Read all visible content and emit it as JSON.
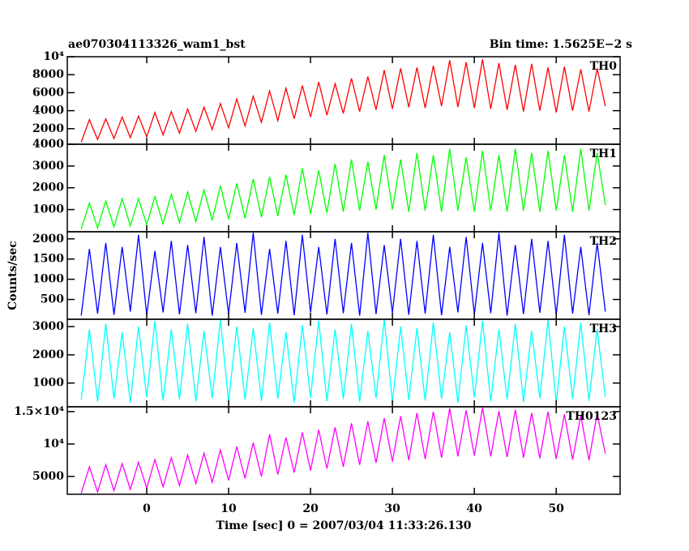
{
  "title": "ae070304113326_wam1_bst",
  "subtitle": "Bin time: 1.5625E−2 s",
  "y_label": "Counts/sec",
  "x_label": "Time [sec] 0 = 2007/03/04 11:33:26.130",
  "chart_data": [
    {
      "type": "line",
      "xlim": [
        -9.7,
        57.8
      ],
      "xticks": [
        0,
        10,
        20,
        30,
        40,
        50
      ],
      "ylim": [
        270,
        10000
      ],
      "yticks": [
        2000,
        4000,
        6000,
        8000,
        {
          "value": 10000,
          "label": "10⁴"
        }
      ],
      "x": [
        -8,
        -7,
        -6,
        -5,
        -4,
        -3,
        -2,
        -1,
        0,
        1,
        2,
        3,
        4,
        5,
        6,
        7,
        8,
        9,
        10,
        11,
        12,
        13,
        14,
        15,
        16,
        17,
        18,
        19,
        20,
        21,
        22,
        23,
        24,
        25,
        26,
        27,
        28,
        29,
        30,
        31,
        32,
        33,
        34,
        35,
        36,
        37,
        38,
        39,
        40,
        41,
        42,
        43,
        44,
        45,
        46,
        47,
        48,
        49,
        50,
        51,
        52,
        53,
        54,
        55,
        56
      ],
      "series": [
        {
          "name": "TH0",
          "color": "#ff0000",
          "values": [
            500,
            3000,
            800,
            3100,
            900,
            3300,
            1000,
            3400,
            1100,
            3800,
            1300,
            3900,
            1500,
            4200,
            1700,
            4400,
            1900,
            4800,
            2100,
            5300,
            2300,
            5600,
            2700,
            6200,
            2900,
            6500,
            3100,
            6800,
            3300,
            7200,
            3500,
            7000,
            3700,
            7600,
            3900,
            7800,
            4100,
            8500,
            4200,
            8700,
            4400,
            8800,
            4300,
            9000,
            4500,
            9600,
            4400,
            9400,
            4300,
            9700,
            4200,
            9300,
            4100,
            9100,
            3900,
            9200,
            4000,
            8800,
            3800,
            8900,
            4000,
            8600,
            3900,
            8700,
            4500
          ]
        }
      ]
    },
    {
      "type": "line",
      "xlim": [
        -9.7,
        57.8
      ],
      "xticks": [
        0,
        10,
        20,
        30,
        40,
        50
      ],
      "ylim": [
        -20,
        4000
      ],
      "yticks": [
        1000,
        2000,
        3000,
        4000
      ],
      "x": [
        -8,
        -7,
        -6,
        -5,
        -4,
        -3,
        -2,
        -1,
        0,
        1,
        2,
        3,
        4,
        5,
        6,
        7,
        8,
        9,
        10,
        11,
        12,
        13,
        14,
        15,
        16,
        17,
        18,
        19,
        20,
        21,
        22,
        23,
        24,
        25,
        26,
        27,
        28,
        29,
        30,
        31,
        32,
        33,
        34,
        35,
        36,
        37,
        38,
        39,
        40,
        41,
        42,
        43,
        44,
        45,
        46,
        47,
        48,
        49,
        50,
        51,
        52,
        53,
        54,
        55,
        56
      ],
      "series": [
        {
          "name": "TH1",
          "color": "#00ff00",
          "values": [
            100,
            1300,
            150,
            1400,
            200,
            1500,
            250,
            1500,
            300,
            1600,
            350,
            1700,
            400,
            1800,
            450,
            1900,
            500,
            2100,
            550,
            2200,
            600,
            2400,
            650,
            2500,
            700,
            2600,
            750,
            2900,
            800,
            2800,
            850,
            3100,
            900,
            3300,
            950,
            3200,
            1000,
            3500,
            1000,
            3300,
            900,
            3600,
            950,
            3500,
            900,
            3800,
            950,
            3400,
            900,
            3700,
            950,
            3500,
            900,
            3800,
            950,
            3600,
            900,
            3700,
            950,
            3500,
            900,
            3800,
            950,
            3600,
            1200
          ]
        }
      ]
    },
    {
      "type": "line",
      "xlim": [
        -9.7,
        57.8
      ],
      "xticks": [
        0,
        10,
        20,
        30,
        40,
        50
      ],
      "ylim": [
        10,
        2176
      ],
      "yticks": [
        500,
        1000,
        1500,
        2000
      ],
      "x": [
        -8,
        -7,
        -6,
        -5,
        -4,
        -3,
        -2,
        -1,
        0,
        1,
        2,
        3,
        4,
        5,
        6,
        7,
        8,
        9,
        10,
        11,
        12,
        13,
        14,
        15,
        16,
        17,
        18,
        19,
        20,
        21,
        22,
        23,
        24,
        25,
        26,
        27,
        28,
        29,
        30,
        31,
        32,
        33,
        34,
        35,
        36,
        37,
        38,
        39,
        40,
        41,
        42,
        43,
        44,
        45,
        46,
        47,
        48,
        49,
        50,
        51,
        52,
        53,
        54,
        55,
        56
      ],
      "series": [
        {
          "name": "TH2",
          "color": "#0000ff",
          "values": [
            100,
            1750,
            150,
            1900,
            120,
            1800,
            200,
            2100,
            110,
            1700,
            180,
            1950,
            130,
            1850,
            160,
            2050,
            100,
            1800,
            140,
            1900,
            170,
            2150,
            120,
            1750,
            150,
            1950,
            110,
            2100,
            180,
            1800,
            130,
            2000,
            160,
            1900,
            100,
            2150,
            140,
            1850,
            170,
            2000,
            120,
            1950,
            150,
            2100,
            110,
            1800,
            180,
            2050,
            130,
            1900,
            160,
            2150,
            100,
            1850,
            140,
            2000,
            170,
            1950,
            120,
            2100,
            150,
            1800,
            110,
            1900,
            200
          ]
        }
      ]
    },
    {
      "type": "line",
      "xlim": [
        -9.7,
        57.8
      ],
      "xticks": [
        0,
        10,
        20,
        30,
        40,
        50
      ],
      "ylim": [
        160,
        3260
      ],
      "yticks": [
        1000,
        2000,
        3000
      ],
      "x": [
        -8,
        -7,
        -6,
        -5,
        -4,
        -3,
        -2,
        -1,
        0,
        1,
        2,
        3,
        4,
        5,
        6,
        7,
        8,
        9,
        10,
        11,
        12,
        13,
        14,
        15,
        16,
        17,
        18,
        19,
        20,
        21,
        22,
        23,
        24,
        25,
        26,
        27,
        28,
        29,
        30,
        31,
        32,
        33,
        34,
        35,
        36,
        37,
        38,
        39,
        40,
        41,
        42,
        43,
        44,
        45,
        46,
        47,
        48,
        49,
        50,
        51,
        52,
        53,
        54,
        55,
        56
      ],
      "series": [
        {
          "name": "TH3",
          "color": "#00ffff",
          "values": [
            400,
            2900,
            350,
            3100,
            450,
            2800,
            300,
            3000,
            500,
            3200,
            380,
            2900,
            420,
            3100,
            350,
            2850,
            460,
            3250,
            330,
            3000,
            410,
            2950,
            370,
            3150,
            440,
            2800,
            310,
            3050,
            480,
            3200,
            360,
            2900,
            430,
            3100,
            340,
            2850,
            470,
            3250,
            320,
            3000,
            400,
            2950,
            380,
            3150,
            450,
            2800,
            300,
            3050,
            490,
            3200,
            350,
            2900,
            420,
            3100,
            330,
            2850,
            460,
            3250,
            310,
            3000,
            440,
            3150,
            370,
            2900,
            500
          ]
        }
      ]
    },
    {
      "type": "line",
      "xlim": [
        -9.7,
        57.8
      ],
      "xticks": [
        0,
        10,
        20,
        30,
        40,
        50
      ],
      "ylim": [
        2250,
        15750
      ],
      "yticks": [
        5000,
        {
          "value": 10000,
          "label": "10⁴"
        },
        {
          "value": 15000,
          "label": "1.5×10⁴"
        }
      ],
      "x": [
        -8,
        -7,
        -6,
        -5,
        -4,
        -3,
        -2,
        -1,
        0,
        1,
        2,
        3,
        4,
        5,
        6,
        7,
        8,
        9,
        10,
        11,
        12,
        13,
        14,
        15,
        16,
        17,
        18,
        19,
        20,
        21,
        22,
        23,
        24,
        25,
        26,
        27,
        28,
        29,
        30,
        31,
        32,
        33,
        34,
        35,
        36,
        37,
        38,
        39,
        40,
        41,
        42,
        43,
        44,
        45,
        46,
        47,
        48,
        49,
        50,
        51,
        52,
        53,
        54,
        55,
        56
      ],
      "series": [
        {
          "name": "TH0123",
          "color": "#ff00ff",
          "values": [
            2400,
            6500,
            2600,
            6800,
            2800,
            7000,
            3000,
            7200,
            3200,
            7600,
            3400,
            7900,
            3600,
            8300,
            3900,
            8600,
            4100,
            9100,
            4400,
            9600,
            4700,
            10200,
            5000,
            11500,
            5300,
            11000,
            5600,
            11800,
            5900,
            12200,
            6200,
            12600,
            6500,
            13200,
            6800,
            13500,
            7100,
            14000,
            7300,
            14300,
            7500,
            14800,
            7700,
            15000,
            7900,
            15500,
            8100,
            15200,
            8200,
            15600,
            8100,
            15100,
            8000,
            15300,
            7900,
            14800,
            7800,
            15000,
            7700,
            14600,
            7600,
            14400,
            7500,
            14700,
            8500
          ]
        }
      ]
    }
  ]
}
